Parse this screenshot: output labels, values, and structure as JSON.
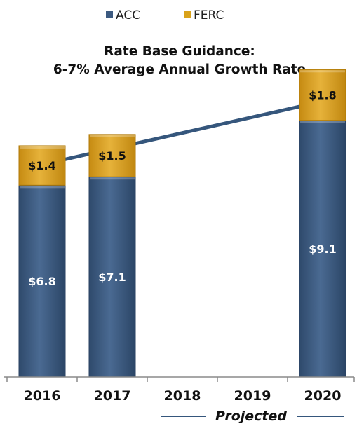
{
  "chart_data": {
    "type": "bar",
    "stacked": true,
    "title": "Rate Base Guidance:",
    "subtitle": "6-7% Average Annual Growth Rate",
    "categories": [
      "2016",
      "2017",
      "2018",
      "2019",
      "2020"
    ],
    "series": [
      {
        "name": "ACC",
        "color": "#3c5a80",
        "values": [
          6.8,
          7.1,
          null,
          null,
          9.1
        ],
        "labels": [
          "$6.8",
          "$7.1",
          "",
          "",
          "$9.1"
        ]
      },
      {
        "name": "FERC",
        "color": "#d9a21a",
        "values": [
          1.4,
          1.5,
          null,
          null,
          1.8
        ],
        "labels": [
          "$1.4",
          "$1.5",
          "",
          "",
          "$1.8"
        ]
      }
    ],
    "ylim": [
      0,
      12
    ],
    "legend_position": "top",
    "annotation": "Projected",
    "grid": false
  }
}
